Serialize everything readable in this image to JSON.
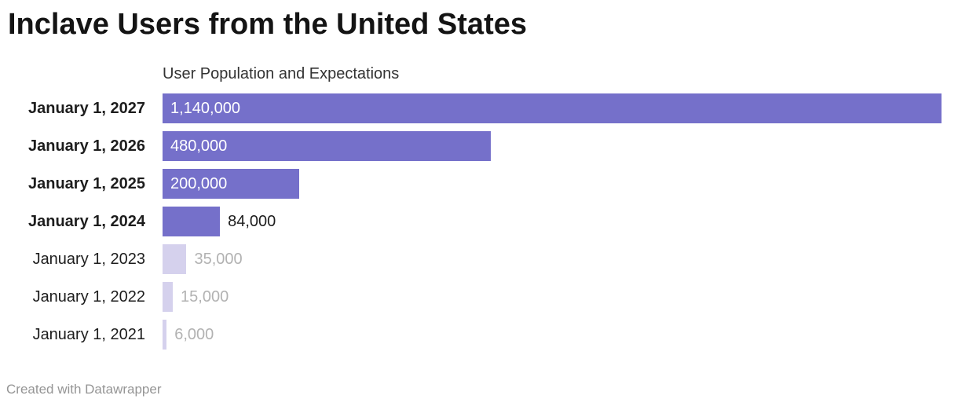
{
  "header": {
    "title": "Inclave Users from the United States"
  },
  "chart_data": {
    "type": "bar",
    "orientation": "horizontal",
    "title": "Inclave Users from the United States",
    "axis_label": "User Population and Expectations",
    "categories": [
      "January 1, 2027",
      "January 1, 2026",
      "January 1, 2025",
      "January 1, 2024",
      "January 1, 2023",
      "January 1, 2022",
      "January 1, 2021"
    ],
    "values": [
      1140000,
      480000,
      200000,
      84000,
      35000,
      15000,
      6000
    ],
    "value_labels": [
      "1,140,000",
      "480,000",
      "200,000",
      "84,000",
      "35,000",
      "15,000",
      "6,000"
    ],
    "emphasized": [
      true,
      true,
      true,
      true,
      false,
      false,
      false
    ],
    "value_inside": [
      true,
      true,
      true,
      false,
      false,
      false,
      false
    ],
    "xlim": [
      0,
      1140000
    ],
    "grid": false,
    "legend": "none",
    "colors": {
      "bar_emphasized": "#7570ca",
      "bar_deemphasized": "#d5d1ed",
      "value_inside_text": "#ffffff",
      "value_outside_emphasized_text": "#1d1d1d",
      "value_outside_deemphasized_text": "#b2b2b2"
    }
  },
  "footer": {
    "credit": "Created with Datawrapper"
  }
}
